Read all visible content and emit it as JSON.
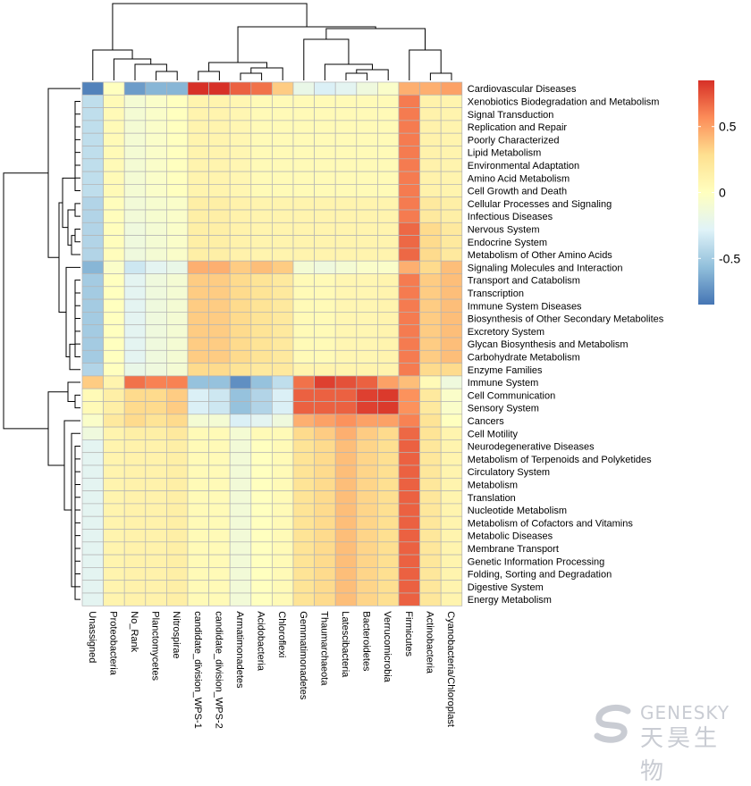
{
  "chart_data": {
    "type": "heatmap",
    "rows": [
      "Cardiovascular Diseases",
      "Xenobiotics Biodegradation and Metabolism",
      "Signal Transduction",
      "Replication and Repair",
      "Poorly Characterized",
      "Lipid Metabolism",
      "Environmental Adaptation",
      "Amino Acid Metabolism",
      "Cell Growth and Death",
      "Cellular Processes and Signaling",
      "Infectious Diseases",
      "Nervous System",
      "Endocrine System",
      "Metabolism of Other Amino Acids",
      "Signaling Molecules and Interaction",
      "Transport and Catabolism",
      "Transcription",
      "Immune System Diseases",
      "Biosynthesis of Other Secondary Metabolites",
      "Excretory System",
      "Glycan Biosynthesis and Metabolism",
      "Carbohydrate Metabolism",
      "Enzyme Families",
      "Immune System",
      "Cell Communication",
      "Sensory System",
      "Cancers",
      "Cell Motility",
      "Neurodegenerative Diseases",
      "Metabolism of Terpenoids and Polyketides",
      "Circulatory System",
      "Metabolism",
      "Translation",
      "Nucleotide Metabolism",
      "Metabolism of Cofactors and Vitamins",
      "Metabolic Diseases",
      "Membrane Transport",
      "Genetic Information Processing",
      "Folding, Sorting and Degradation",
      "Digestive System",
      "Energy Metabolism"
    ],
    "columns": [
      "Unassigned",
      "Proteobacteria",
      "No_Rank",
      "Planctomycetes",
      "Nitrospirae",
      "candidate_division_WPS-1",
      "candidate_division_WPS-2",
      "Armatimonadetes",
      "Acidobacteria",
      "Chloroflexi",
      "Gemmatimonadetes",
      "Thaumarchaeota",
      "Latescibacteria",
      "Bacteroidetes",
      "Verrucomicrobia",
      "Firmicutes",
      "Actinobacteria",
      "Cyanobacteria/Chloroplast"
    ],
    "values": [
      [
        -0.8,
        0.0,
        -0.7,
        -0.6,
        -0.6,
        0.85,
        0.85,
        0.7,
        0.65,
        0.35,
        -0.2,
        -0.3,
        -0.25,
        -0.15,
        -0.05,
        0.45,
        0.45,
        0.5
      ],
      [
        -0.4,
        0.05,
        -0.1,
        -0.05,
        0.0,
        0.1,
        0.1,
        0.08,
        0.05,
        0.05,
        0.05,
        0.05,
        0.05,
        0.05,
        0.05,
        0.62,
        0.12,
        0.1
      ],
      [
        -0.4,
        0.05,
        -0.1,
        -0.05,
        0.0,
        0.1,
        0.1,
        0.08,
        0.05,
        0.05,
        0.05,
        0.05,
        0.05,
        0.05,
        0.05,
        0.62,
        0.12,
        0.1
      ],
      [
        -0.4,
        0.05,
        -0.1,
        -0.05,
        0.0,
        0.1,
        0.1,
        0.08,
        0.05,
        0.05,
        0.05,
        0.05,
        0.05,
        0.05,
        0.05,
        0.62,
        0.12,
        0.1
      ],
      [
        -0.4,
        0.05,
        -0.1,
        -0.05,
        0.0,
        0.1,
        0.1,
        0.08,
        0.05,
        0.05,
        0.05,
        0.05,
        0.05,
        0.05,
        0.05,
        0.62,
        0.12,
        0.1
      ],
      [
        -0.4,
        0.05,
        -0.1,
        -0.05,
        0.0,
        0.1,
        0.1,
        0.08,
        0.05,
        0.05,
        0.05,
        0.05,
        0.05,
        0.05,
        0.05,
        0.62,
        0.12,
        0.1
      ],
      [
        -0.4,
        0.05,
        -0.1,
        -0.05,
        0.0,
        0.1,
        0.1,
        0.08,
        0.05,
        0.05,
        0.05,
        0.05,
        0.05,
        0.05,
        0.05,
        0.62,
        0.12,
        0.1
      ],
      [
        -0.4,
        0.05,
        -0.1,
        -0.05,
        0.0,
        0.1,
        0.1,
        0.08,
        0.05,
        0.05,
        0.05,
        0.05,
        0.05,
        0.05,
        0.05,
        0.62,
        0.12,
        0.1
      ],
      [
        -0.4,
        0.05,
        -0.1,
        -0.05,
        0.0,
        0.1,
        0.1,
        0.08,
        0.05,
        0.05,
        0.05,
        0.05,
        0.05,
        0.05,
        0.05,
        0.62,
        0.12,
        0.1
      ],
      [
        -0.45,
        0.02,
        -0.12,
        -0.08,
        -0.05,
        0.15,
        0.15,
        0.12,
        0.1,
        0.1,
        0.1,
        0.1,
        0.1,
        0.1,
        0.1,
        0.62,
        0.2,
        0.15
      ],
      [
        -0.45,
        0.02,
        -0.12,
        -0.08,
        -0.05,
        0.15,
        0.15,
        0.12,
        0.1,
        0.1,
        0.1,
        0.1,
        0.1,
        0.1,
        0.1,
        0.62,
        0.2,
        0.15
      ],
      [
        -0.45,
        0.02,
        -0.15,
        -0.1,
        -0.05,
        0.15,
        0.15,
        0.12,
        0.1,
        0.1,
        0.1,
        0.1,
        0.1,
        0.1,
        0.1,
        0.68,
        0.3,
        0.2
      ],
      [
        -0.45,
        0.02,
        -0.15,
        -0.1,
        -0.05,
        0.15,
        0.15,
        0.12,
        0.1,
        0.1,
        0.1,
        0.1,
        0.1,
        0.1,
        0.1,
        0.68,
        0.3,
        0.2
      ],
      [
        -0.45,
        0.02,
        -0.15,
        -0.1,
        -0.05,
        0.15,
        0.15,
        0.12,
        0.1,
        0.1,
        0.1,
        0.1,
        0.1,
        0.1,
        0.1,
        0.68,
        0.3,
        0.2
      ],
      [
        -0.6,
        -0.05,
        -0.35,
        -0.25,
        -0.2,
        0.45,
        0.45,
        0.35,
        0.4,
        0.35,
        -0.1,
        -0.15,
        -0.1,
        -0.05,
        -0.05,
        0.45,
        0.3,
        0.4
      ],
      [
        -0.5,
        0.0,
        -0.25,
        -0.15,
        -0.1,
        0.35,
        0.35,
        0.3,
        0.25,
        0.2,
        0.05,
        0.05,
        0.08,
        0.08,
        0.1,
        0.62,
        0.35,
        0.4
      ],
      [
        -0.5,
        0.0,
        -0.25,
        -0.15,
        -0.1,
        0.35,
        0.35,
        0.3,
        0.25,
        0.2,
        0.05,
        0.05,
        0.08,
        0.08,
        0.1,
        0.62,
        0.35,
        0.4
      ],
      [
        -0.5,
        0.0,
        -0.25,
        -0.15,
        -0.1,
        0.35,
        0.35,
        0.3,
        0.25,
        0.2,
        0.05,
        0.05,
        0.08,
        0.08,
        0.1,
        0.62,
        0.35,
        0.4
      ],
      [
        -0.5,
        0.0,
        -0.25,
        -0.15,
        -0.1,
        0.35,
        0.35,
        0.3,
        0.25,
        0.2,
        0.05,
        0.05,
        0.08,
        0.08,
        0.1,
        0.62,
        0.35,
        0.4
      ],
      [
        -0.5,
        0.0,
        -0.25,
        -0.15,
        -0.1,
        0.35,
        0.35,
        0.3,
        0.25,
        0.2,
        0.05,
        0.05,
        0.08,
        0.08,
        0.1,
        0.62,
        0.35,
        0.4
      ],
      [
        -0.5,
        0.0,
        -0.25,
        -0.15,
        -0.1,
        0.35,
        0.35,
        0.3,
        0.25,
        0.2,
        0.05,
        0.05,
        0.08,
        0.08,
        0.1,
        0.62,
        0.35,
        0.4
      ],
      [
        -0.5,
        0.0,
        -0.25,
        -0.15,
        -0.1,
        0.35,
        0.35,
        0.3,
        0.25,
        0.2,
        0.05,
        0.05,
        0.08,
        0.08,
        0.1,
        0.62,
        0.35,
        0.4
      ],
      [
        -0.45,
        0.0,
        -0.2,
        -0.15,
        -0.1,
        0.3,
        0.3,
        0.25,
        0.2,
        0.2,
        0.1,
        0.1,
        0.1,
        0.1,
        0.1,
        0.62,
        0.3,
        0.3
      ],
      [
        0.35,
        0.1,
        0.65,
        0.6,
        0.6,
        -0.55,
        -0.55,
        -0.75,
        -0.55,
        -0.4,
        0.65,
        0.8,
        0.75,
        0.7,
        0.5,
        0.4,
        0.05,
        -0.15
      ],
      [
        0.05,
        0.15,
        0.3,
        0.3,
        0.35,
        -0.3,
        -0.35,
        -0.55,
        -0.45,
        -0.3,
        0.7,
        0.7,
        0.7,
        0.8,
        0.82,
        0.55,
        0.2,
        -0.05
      ],
      [
        0.05,
        0.15,
        0.3,
        0.3,
        0.35,
        -0.3,
        -0.35,
        -0.55,
        -0.45,
        -0.3,
        0.7,
        0.7,
        0.7,
        0.8,
        0.82,
        0.55,
        0.2,
        -0.05
      ],
      [
        -0.05,
        0.2,
        0.3,
        0.25,
        0.3,
        -0.1,
        -0.1,
        -0.3,
        -0.25,
        -0.15,
        0.45,
        0.5,
        0.55,
        0.5,
        0.5,
        0.6,
        0.25,
        0.0
      ],
      [
        -0.15,
        0.1,
        0.15,
        0.15,
        0.2,
        0.05,
        0.05,
        -0.1,
        0.05,
        0.05,
        0.3,
        0.35,
        0.45,
        0.35,
        0.3,
        0.68,
        0.25,
        0.1
      ],
      [
        -0.25,
        0.1,
        0.12,
        0.12,
        0.15,
        0.05,
        0.05,
        -0.12,
        0.0,
        0.05,
        0.25,
        0.3,
        0.4,
        0.32,
        0.28,
        0.7,
        0.22,
        0.1
      ],
      [
        -0.25,
        0.1,
        0.12,
        0.12,
        0.15,
        0.05,
        0.05,
        -0.12,
        0.0,
        0.05,
        0.25,
        0.3,
        0.4,
        0.32,
        0.28,
        0.7,
        0.22,
        0.1
      ],
      [
        -0.25,
        0.1,
        0.12,
        0.12,
        0.15,
        0.05,
        0.05,
        -0.12,
        0.0,
        0.05,
        0.25,
        0.3,
        0.4,
        0.32,
        0.28,
        0.7,
        0.22,
        0.1
      ],
      [
        -0.25,
        0.1,
        0.12,
        0.12,
        0.15,
        0.05,
        0.05,
        -0.12,
        0.0,
        0.05,
        0.25,
        0.3,
        0.4,
        0.32,
        0.28,
        0.7,
        0.22,
        0.1
      ],
      [
        -0.25,
        0.1,
        0.12,
        0.12,
        0.15,
        0.05,
        0.05,
        -0.12,
        0.0,
        0.05,
        0.25,
        0.3,
        0.4,
        0.32,
        0.28,
        0.7,
        0.22,
        0.1
      ],
      [
        -0.25,
        0.1,
        0.12,
        0.12,
        0.15,
        0.05,
        0.05,
        -0.12,
        0.0,
        0.05,
        0.25,
        0.3,
        0.4,
        0.32,
        0.28,
        0.7,
        0.22,
        0.1
      ],
      [
        -0.25,
        0.1,
        0.12,
        0.12,
        0.15,
        0.05,
        0.05,
        -0.12,
        0.0,
        0.05,
        0.25,
        0.3,
        0.4,
        0.32,
        0.28,
        0.7,
        0.22,
        0.1
      ],
      [
        -0.25,
        0.1,
        0.12,
        0.12,
        0.15,
        0.05,
        0.05,
        -0.12,
        0.0,
        0.05,
        0.25,
        0.3,
        0.4,
        0.32,
        0.28,
        0.7,
        0.22,
        0.1
      ],
      [
        -0.25,
        0.1,
        0.12,
        0.12,
        0.15,
        0.05,
        0.05,
        -0.12,
        0.0,
        0.05,
        0.25,
        0.3,
        0.4,
        0.32,
        0.28,
        0.7,
        0.22,
        0.1
      ],
      [
        -0.25,
        0.1,
        0.12,
        0.12,
        0.15,
        0.05,
        0.05,
        -0.12,
        0.0,
        0.05,
        0.25,
        0.3,
        0.4,
        0.32,
        0.28,
        0.7,
        0.22,
        0.1
      ],
      [
        -0.25,
        0.1,
        0.12,
        0.12,
        0.15,
        0.05,
        0.05,
        -0.12,
        0.0,
        0.05,
        0.25,
        0.3,
        0.4,
        0.32,
        0.28,
        0.7,
        0.22,
        0.1
      ],
      [
        -0.25,
        0.1,
        0.12,
        0.12,
        0.15,
        0.05,
        0.05,
        -0.12,
        0.0,
        0.05,
        0.25,
        0.3,
        0.4,
        0.32,
        0.28,
        0.7,
        0.22,
        0.1
      ],
      [
        -0.25,
        0.1,
        0.12,
        0.12,
        0.15,
        0.05,
        0.05,
        -0.12,
        0.0,
        0.05,
        0.25,
        0.3,
        0.4,
        0.32,
        0.28,
        0.7,
        0.22,
        0.1
      ]
    ],
    "color_scale": {
      "ticks": [
        0.5,
        0,
        -0.5
      ],
      "tick_labels": [
        "0.5",
        "0",
        "-0.5"
      ],
      "range": [
        -0.85,
        0.85
      ],
      "colors": [
        "#4575b4",
        "#91bfdb",
        "#e0f3f8",
        "#ffffbf",
        "#fee090",
        "#fc8d59",
        "#d73027"
      ]
    },
    "legend_position": "right",
    "column_dendrogram": "top",
    "row_dendrogram": "left",
    "cell_border_color": "#b4b4b4",
    "title": "",
    "xlabel": "",
    "ylabel": ""
  },
  "watermark": {
    "brand_en": "GENESKY",
    "brand_cn": "天昊生物"
  }
}
